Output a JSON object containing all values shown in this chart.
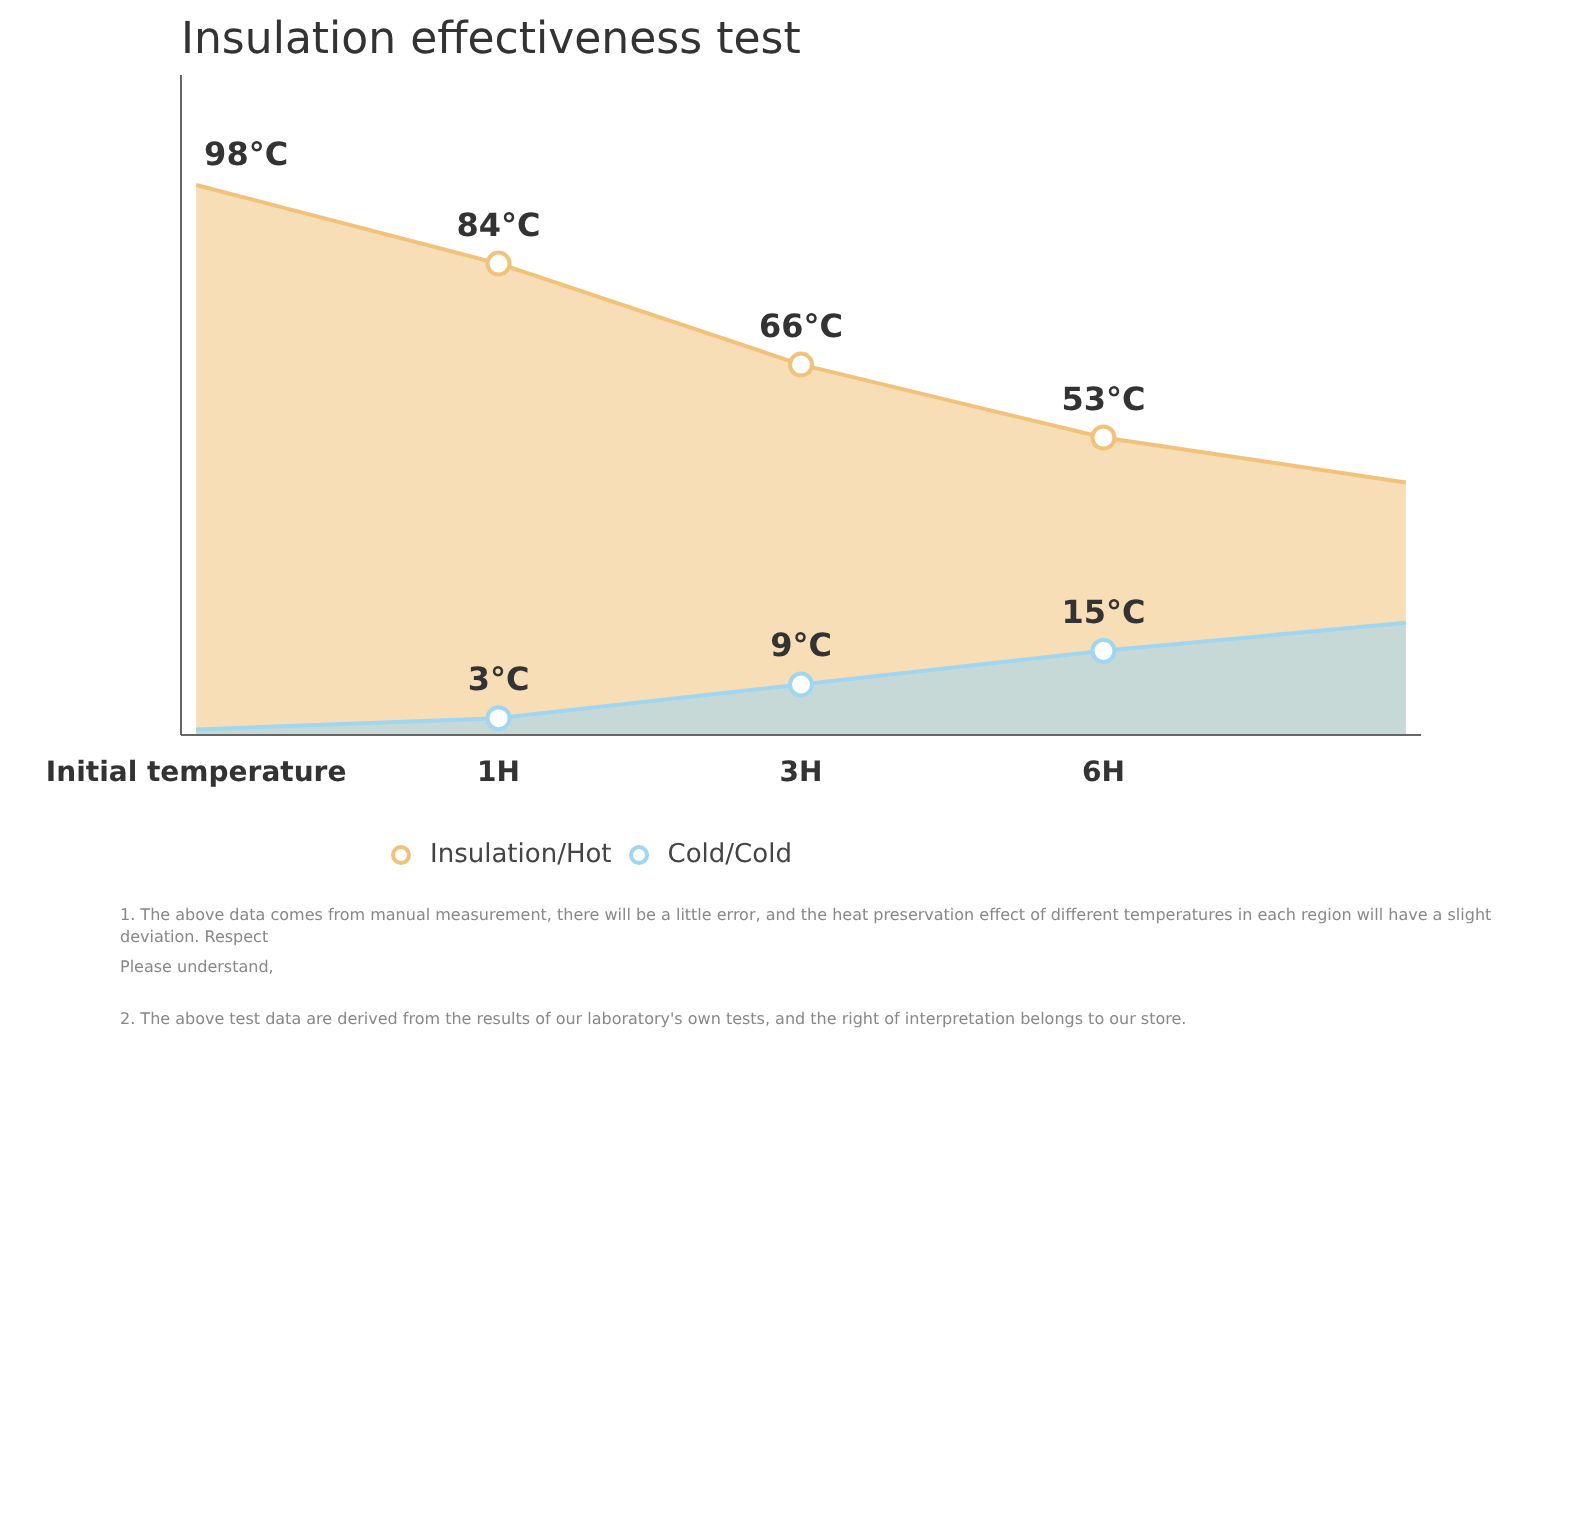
{
  "chart_data": {
    "type": "area",
    "title": "Insulation effectiveness test",
    "categories": [
      "Initial temperature",
      "1H",
      "3H",
      "6H",
      null
    ],
    "series": [
      {
        "name": "Insulation/Hot",
        "color": "#f2c27a",
        "values": [
          98,
          84,
          66,
          53,
          45
        ],
        "value_labels": [
          null,
          "84°C",
          "66°C",
          "53°C",
          null
        ]
      },
      {
        "name": "Cold/Cold",
        "color": "#9fd6f2",
        "values": [
          1,
          3,
          9,
          15,
          20
        ],
        "value_labels": [
          null,
          "3°C",
          "9°C",
          "15°C",
          null
        ]
      }
    ],
    "marker": "circle",
    "grid": false,
    "legend": "bottom left",
    "annotations": [
      {
        "text": "98°C",
        "x": "Initial temperature",
        "y": 98
      },
      "1. The above data comes from manual measurement, there will be a little error, and the heat preservation effect of different temperatures in each region will have a slight deviation. Respect",
      "Please understand,",
      "2. The above test data are derived from the results of our laboratory's own tests, and the right of interpretation belongs to our store."
    ]
  }
}
